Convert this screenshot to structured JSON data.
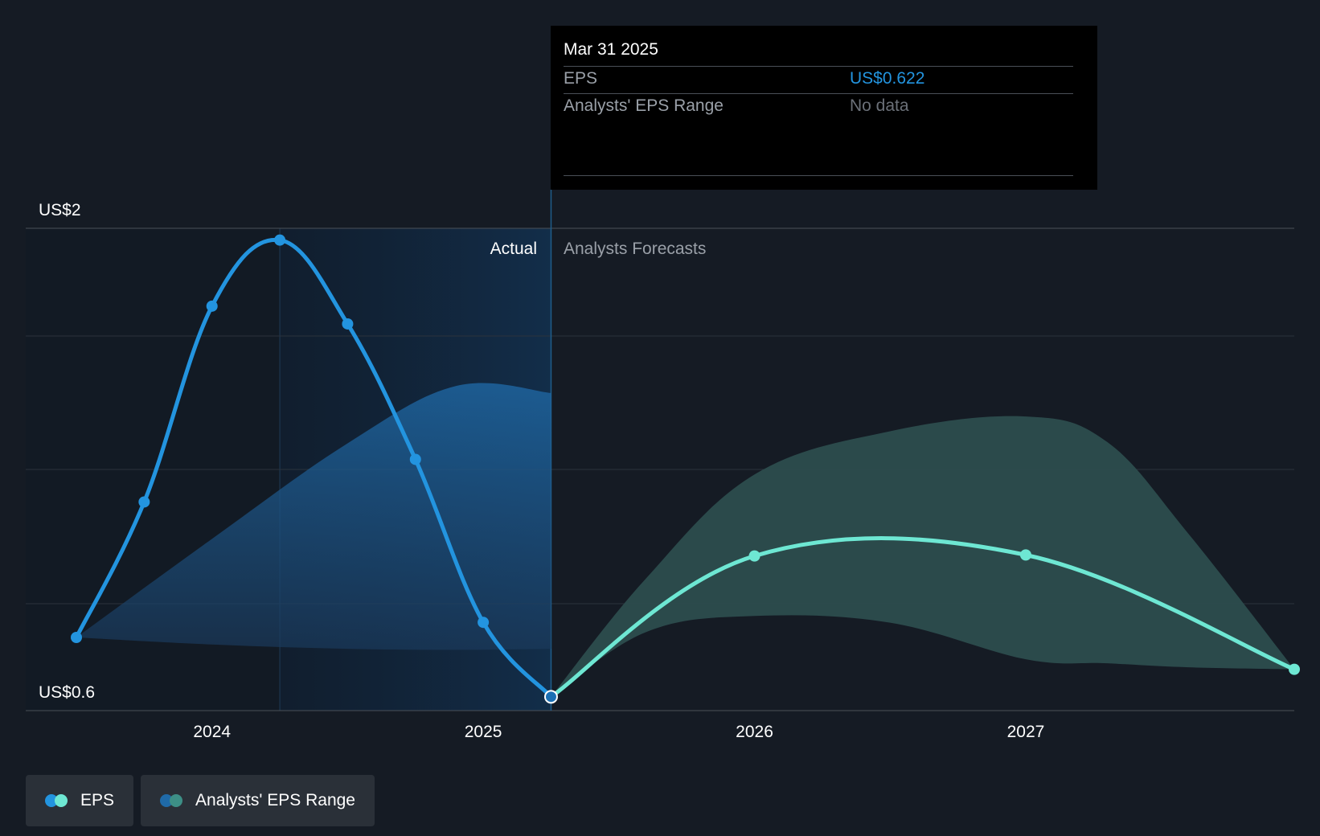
{
  "chart_data": {
    "type": "line",
    "y_axis": {
      "label_top": "US$2",
      "label_bottom": "US$0.6",
      "ylim": [
        0.6,
        2.0
      ]
    },
    "x_ticks": [
      "2024",
      "2025",
      "2026",
      "2027"
    ],
    "sections": {
      "actual_label": "Actual",
      "forecast_label": "Analysts Forecasts"
    },
    "series": [
      {
        "name": "EPS",
        "kind": "actual",
        "color": "#2394df",
        "points": [
          {
            "x": 2023.5,
            "y": 0.799
          },
          {
            "x": 2023.75,
            "y": 1.203
          },
          {
            "x": 2024.0,
            "y": 1.787
          },
          {
            "x": 2024.25,
            "y": 1.984
          },
          {
            "x": 2024.5,
            "y": 1.734
          },
          {
            "x": 2024.75,
            "y": 1.33
          },
          {
            "x": 2025.0,
            "y": 0.844
          },
          {
            "x": 2025.25,
            "y": 0.622
          }
        ]
      },
      {
        "name": "EPS",
        "kind": "forecast",
        "color": "#6ee7d3",
        "points": [
          {
            "x": 2025.25,
            "y": 0.622
          },
          {
            "x": 2026.0,
            "y": 1.042
          },
          {
            "x": 2027.0,
            "y": 1.045
          },
          {
            "x": 2027.99,
            "y": 0.704
          }
        ]
      }
    ],
    "ranges": [
      {
        "name": "Analysts' EPS Range",
        "kind": "actual",
        "color": "#1f6aa8",
        "x": [
          2023.5,
          2024.0,
          2024.5,
          2024.9,
          2025.25
        ],
        "high": [
          0.799,
          1.093,
          1.378,
          1.549,
          1.528
        ],
        "low": [
          0.799,
          0.778,
          0.765,
          0.762,
          0.765
        ]
      },
      {
        "name": "Analysts' EPS Range",
        "kind": "forecast",
        "color": "#2c4d4e",
        "x": [
          2025.25,
          2025.6,
          2026.0,
          2026.5,
          2027.0,
          2027.3,
          2027.6,
          2027.99
        ],
        "high": [
          0.622,
          0.975,
          1.285,
          1.414,
          1.458,
          1.382,
          1.108,
          0.704
        ],
        "low": [
          0.622,
          0.815,
          0.863,
          0.843,
          0.734,
          0.722,
          0.71,
          0.704
        ]
      }
    ],
    "highlight": {
      "x": 2025.25,
      "y": 0.622
    },
    "grid": true
  },
  "tooltip": {
    "date": "Mar 31 2025",
    "rows": [
      {
        "label": "EPS",
        "value": "US$0.622",
        "value_color": "#2394df"
      },
      {
        "label": "Analysts' EPS Range",
        "value": "No data",
        "value_color": "#6b7078"
      }
    ]
  },
  "legend": [
    {
      "label": "EPS",
      "colors": [
        "#2394df",
        "#6ee7d3"
      ]
    },
    {
      "label": "Analysts' EPS Range",
      "colors": [
        "#1f6aa8",
        "#3d8f86"
      ]
    }
  ]
}
